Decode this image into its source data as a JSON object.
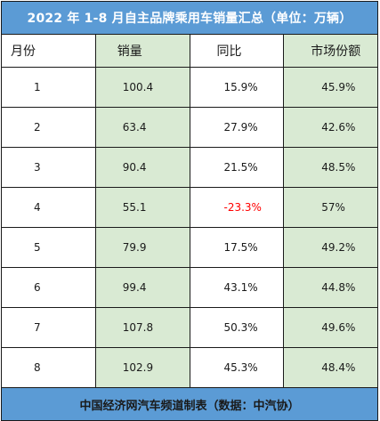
{
  "table": {
    "title": "2022 年 1-8 月自主品牌乘用车销量汇总（单位：万辆）",
    "headers": [
      "月份",
      "销量",
      "同比",
      "市场份额"
    ],
    "rows": [
      {
        "month": "1",
        "sales": "100.4",
        "yoy": "15.9%",
        "share": "45.9%"
      },
      {
        "month": "2",
        "sales": "63.4",
        "yoy": "27.9%",
        "share": "42.6%"
      },
      {
        "month": "3",
        "sales": "90.4",
        "yoy": "21.5%",
        "share": "48.5%"
      },
      {
        "month": "4",
        "sales": "55.1",
        "yoy": "-23.3%",
        "share": "57%"
      },
      {
        "month": "5",
        "sales": "79.9",
        "yoy": "17.5%",
        "share": "49.2%"
      },
      {
        "month": "6",
        "sales": "99.4",
        "yoy": "43.1%",
        "share": "44.8%"
      },
      {
        "month": "7",
        "sales": "107.8",
        "yoy": "50.3%",
        "share": "49.6%"
      },
      {
        "month": "8",
        "sales": "102.9",
        "yoy": "45.3%",
        "share": "48.4%"
      }
    ],
    "footer": "中国经济网汽车频道制表（数据：中汽协）"
  },
  "chart_data": {
    "type": "table",
    "title": "2022 年 1-8 月自主品牌乘用车销量汇总（单位：万辆）",
    "columns": [
      "月份",
      "销量",
      "同比",
      "市场份额"
    ],
    "rows": [
      [
        "1",
        100.4,
        "15.9%",
        "45.9%"
      ],
      [
        "2",
        63.4,
        "27.9%",
        "42.6%"
      ],
      [
        "3",
        90.4,
        "21.5%",
        "48.5%"
      ],
      [
        "4",
        55.1,
        "-23.3%",
        "57%"
      ],
      [
        "5",
        79.9,
        "17.5%",
        "49.2%"
      ],
      [
        "6",
        99.4,
        "43.1%",
        "44.8%"
      ],
      [
        "7",
        107.8,
        "50.3%",
        "49.6%"
      ],
      [
        "8",
        102.9,
        "45.3%",
        "48.4%"
      ]
    ]
  },
  "colors": {
    "title_bg": "#5b9bd5",
    "green_col_bg": "#d9ead3",
    "negative_text": "#ff0000",
    "border": "#1a1a1a"
  }
}
